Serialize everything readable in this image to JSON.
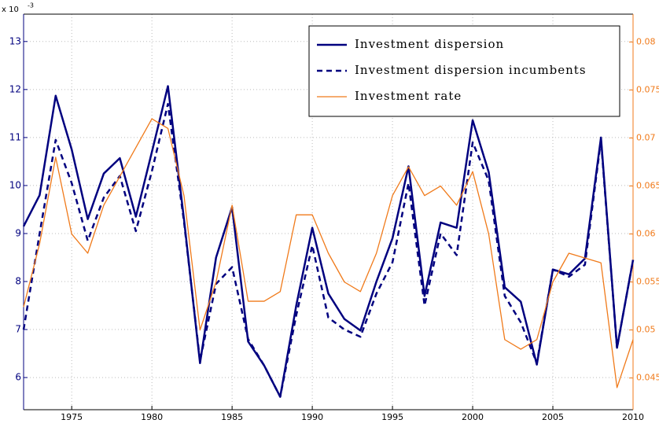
{
  "chart_data": {
    "type": "line",
    "y_multiplier": "x 10",
    "y_multiplier_exp": "-3",
    "x": [
      1972,
      1973,
      1974,
      1975,
      1976,
      1977,
      1978,
      1979,
      1980,
      1981,
      1982,
      1983,
      1984,
      1985,
      1986,
      1987,
      1988,
      1989,
      1990,
      1991,
      1992,
      1993,
      1994,
      1995,
      1996,
      1997,
      1998,
      1999,
      2000,
      2001,
      2002,
      2003,
      2004,
      2005,
      2006,
      2007,
      2008,
      2009,
      2010
    ],
    "series": [
      {
        "name": "Investment dispersion",
        "color": "#00007f",
        "linestyle": "solid",
        "axis": "y",
        "values": [
          9.15,
          9.8,
          11.87,
          10.75,
          9.3,
          10.25,
          10.57,
          9.35,
          10.7,
          12.07,
          9.3,
          6.3,
          8.5,
          9.55,
          6.75,
          6.25,
          5.6,
          7.5,
          9.12,
          7.75,
          7.22,
          6.98,
          8.0,
          8.9,
          10.4,
          7.7,
          9.23,
          9.12,
          11.36,
          10.28,
          7.88,
          7.58,
          6.27,
          8.25,
          8.15,
          8.48,
          11.0,
          6.62,
          8.45
        ]
      },
      {
        "name": "Investment dispersion incumbents",
        "color": "#00007f",
        "linestyle": "dashed",
        "axis": "y",
        "values": [
          7.0,
          9.0,
          10.95,
          10.05,
          8.85,
          9.75,
          10.2,
          9.05,
          10.3,
          11.7,
          9.25,
          6.35,
          7.95,
          8.3,
          6.8,
          6.25,
          5.6,
          7.3,
          8.75,
          7.25,
          7.0,
          6.85,
          7.75,
          8.4,
          10.05,
          7.5,
          9.0,
          8.55,
          10.9,
          10.1,
          7.7,
          7.15,
          6.3,
          8.25,
          8.1,
          8.35,
          10.95,
          6.62,
          8.45
        ]
      },
      {
        "name": "Investment rate",
        "color": "#f07a1a",
        "linestyle": "thin",
        "axis": "y2",
        "values": [
          0.0524,
          0.059,
          0.068,
          0.06,
          0.058,
          0.063,
          0.066,
          0.069,
          0.072,
          0.071,
          0.064,
          0.05,
          0.055,
          0.063,
          0.053,
          0.053,
          0.054,
          0.062,
          0.062,
          0.058,
          0.055,
          0.054,
          0.058,
          0.064,
          0.067,
          0.064,
          0.065,
          0.063,
          0.0665,
          0.06,
          0.049,
          0.048,
          0.049,
          0.055,
          0.058,
          0.0575,
          0.057,
          0.044,
          0.049
        ]
      }
    ],
    "xlim": [
      1972,
      2010
    ],
    "xticks": [
      1975,
      1980,
      1985,
      1990,
      1995,
      2000,
      2005,
      2010
    ],
    "ylim": [
      5.33,
      13.57
    ],
    "yticks": [
      6,
      7,
      8,
      9,
      10,
      11,
      12,
      13
    ],
    "y2lim": [
      0.0417,
      0.0829
    ],
    "y2ticks": [
      0.045,
      0.05,
      0.055,
      0.06,
      0.065,
      0.07,
      0.075,
      0.08
    ],
    "y2_color": "#f07a1a",
    "y_color": "#00007f",
    "grid": true,
    "legend": "upper right"
  }
}
